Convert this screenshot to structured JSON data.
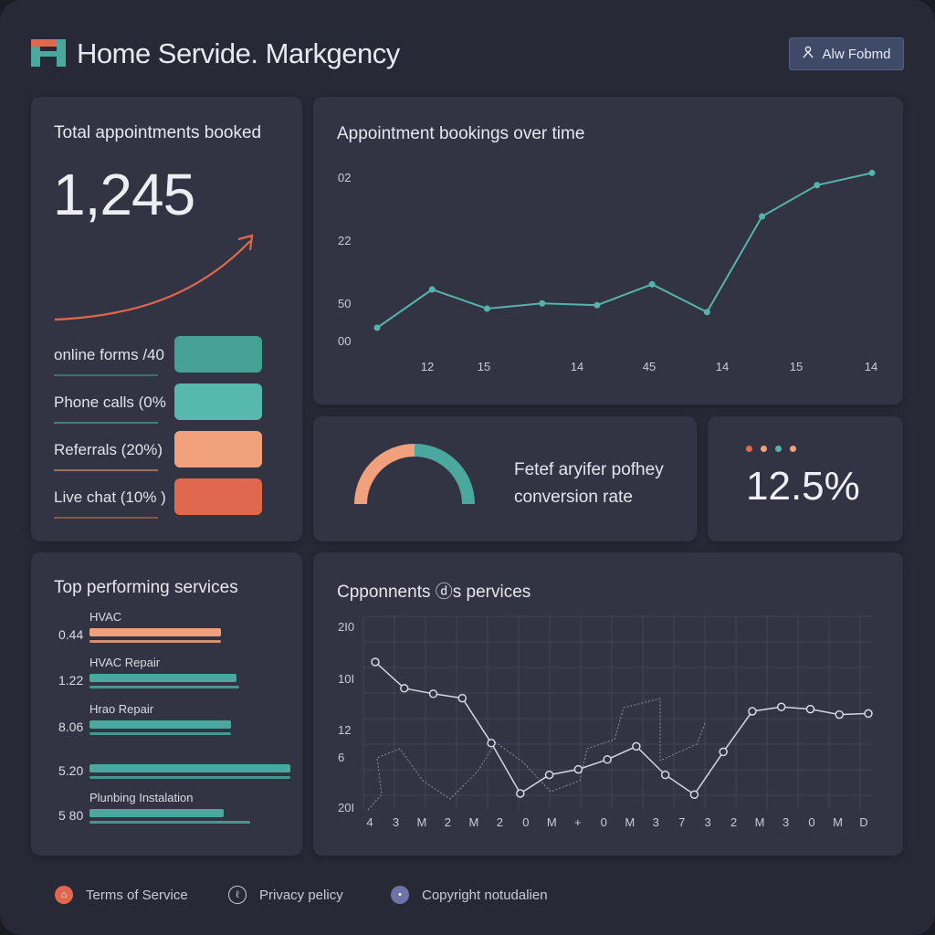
{
  "app": {
    "title": "Home Servide. Markgency",
    "header_button": "Alw Fobmd"
  },
  "colors": {
    "teal": "#4aa89f",
    "teal_light": "#56b3ab",
    "orange": "#f0a07a",
    "coral": "#e0684e",
    "bg": "#272936",
    "card": "#323443"
  },
  "appointments": {
    "title": "Total appointments booked",
    "total": "1,245",
    "sources": [
      {
        "label": "online forms /40",
        "color": "#46a093",
        "level": 0.4
      },
      {
        "label": "Phone calls  (0%",
        "color": "#56b8ae",
        "level": 0.0
      },
      {
        "label": "Referrals  (20%)",
        "color": "#f0a07a",
        "level": 0.2
      },
      {
        "label": "Live chat  (10% )",
        "color": "#e0684e",
        "level": 0.1
      }
    ]
  },
  "bookings": {
    "title": "Appointment bookings over time",
    "chart_data": {
      "type": "line",
      "title": "Appointment bookings over time",
      "y_tick_labels": [
        "02",
        "22",
        "50",
        "00"
      ],
      "x_tick_labels": [
        "12",
        "15",
        "14",
        "45",
        "14",
        "15",
        "14"
      ],
      "series": [
        {
          "values": [
            50,
            72,
            61,
            64,
            63,
            75,
            59,
            114,
            132,
            139
          ]
        }
      ],
      "ylim": [
        40,
        145
      ],
      "grid": false
    }
  },
  "conversion": {
    "label_line1": "Fetef aryifer pofhey",
    "label_line2": "conversion rate",
    "gauge_fraction": 0.5,
    "rate": "12.5%",
    "dot_colors": [
      "#e0684e",
      "#f0a07a",
      "#56b3ab",
      "#f0a07a"
    ]
  },
  "services": {
    "title": "Top performing services",
    "items": [
      {
        "name": "HVAC",
        "value": "0.44",
        "level": 0.49,
        "color": "#f0a07a",
        "sub_level": 0.49,
        "sub_color": "#f0a07a"
      },
      {
        "name": "HVAC Repair",
        "value": "1.22",
        "level": 0.55,
        "color": "#4aa89f",
        "sub_level": 0.56,
        "sub_color": "#4aa89f"
      },
      {
        "name": "Hrao Repair",
        "value": "8.06",
        "level": 0.53,
        "color": "#4aa89f",
        "sub_level": 0.53,
        "sub_color": "#4aa89f"
      },
      {
        "name": "",
        "value": "5.20",
        "level": 0.75,
        "color": "#4aa89f",
        "sub_level": 0.75,
        "sub_color": "#4aa89f"
      },
      {
        "name": "Plunbing Instalation",
        "value": "5 80",
        "level": 0.5,
        "color": "#4aa89f",
        "sub_level": 0.6,
        "sub_color": "#4aa89f"
      }
    ]
  },
  "components": {
    "title": "Cpponnents ⓓs pervices",
    "chart_data": {
      "type": "line",
      "title": "Cpponnents ⓓs pervices",
      "y_tick_labels": [
        "2I0",
        "10I",
        "12",
        "6",
        "20I"
      ],
      "x_tick_labels": [
        "4",
        "3",
        "M",
        "2",
        "M",
        "2",
        "0",
        "M",
        "+",
        "0",
        "M",
        "3",
        "7",
        "3",
        "2",
        "M",
        "3",
        "0",
        "M",
        "D"
      ],
      "series": [
        {
          "values": [
            195,
            171,
            166,
            162,
            121,
            75,
            92,
            97,
            106,
            118,
            92,
            74,
            113,
            150,
            154,
            152,
            147,
            148
          ]
        }
      ],
      "ylim": [
        60,
        220
      ],
      "grid": true
    }
  },
  "footer": {
    "links": [
      {
        "label": "Terms of Service",
        "icon": "shield-icon"
      },
      {
        "label": "Privacy pelicy",
        "icon": "lock-icon"
      },
      {
        "label": "Copyright notudalien",
        "icon": "copyright-icon"
      }
    ]
  }
}
